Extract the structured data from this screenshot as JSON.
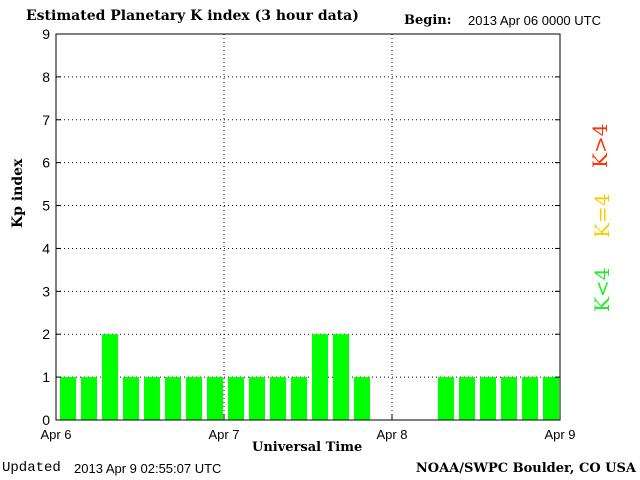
{
  "header": {
    "title": "Estimated Planetary K index (3 hour data)",
    "begin_label": "Begin:",
    "begin_value": "2013 Apr 06 0000 UTC"
  },
  "footer": {
    "updated_label": "Updated",
    "updated_value": "2013 Apr  9 02:55:07 UTC",
    "credit": "NOAA/SWPC Boulder, CO USA"
  },
  "legend": {
    "high": "K>4",
    "mid": "K=4",
    "low": "K<4"
  },
  "colors": {
    "low": "#00ff00",
    "mid": "#ffff00",
    "high": "#ff0000",
    "legend_low": "#22ee22",
    "legend_mid": "#ffcc00",
    "legend_high": "#ff3300"
  },
  "chart_data": {
    "type": "bar",
    "title": "Estimated Planetary K index (3 hour data)",
    "xlabel": "Universal Time",
    "ylabel": "Kp index",
    "ylim": [
      0,
      9
    ],
    "yticks": [
      0,
      1,
      2,
      3,
      4,
      5,
      6,
      7,
      8,
      9
    ],
    "xticks": [
      "Apr 6",
      "Apr 7",
      "Apr 8",
      "Apr 9"
    ],
    "grid": true,
    "values": [
      1,
      1,
      2,
      1,
      1,
      1,
      1,
      1,
      1,
      1,
      1,
      1,
      2,
      2,
      1,
      null,
      null,
      null,
      1,
      1,
      1,
      1,
      1,
      1
    ]
  }
}
